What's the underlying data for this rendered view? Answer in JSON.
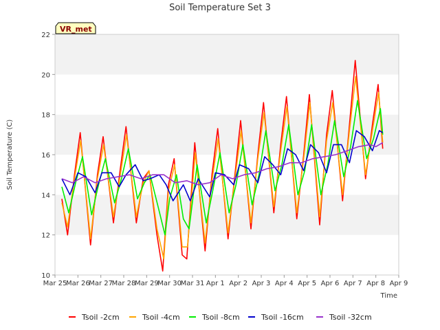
{
  "chart_data": {
    "type": "line",
    "title": "Soil Temperature Set 3",
    "xlabel": "Time",
    "ylabel": "Soil Temperature (C)",
    "site_label": "VR_met",
    "xlim": [
      0,
      15
    ],
    "ylim": [
      10,
      22
    ],
    "yticks": [
      10,
      12,
      14,
      16,
      18,
      20,
      22
    ],
    "xtick_labels": [
      "Mar 25",
      "Mar 26",
      "Mar 27",
      "Mar 28",
      "Mar 29",
      "Mar 30",
      "Mar 31",
      "Apr 1",
      "Apr 2",
      "Apr 3",
      "Apr 4",
      "Apr 5",
      "Apr 6",
      "Apr 7",
      "Apr 8",
      "Apr 9"
    ],
    "x_unit": "days since Mar 25",
    "grid": "horizontal bands",
    "legend_position": "bottom",
    "series": [
      {
        "name": "Tsoil -2cm",
        "color": "#ff0000",
        "x": [
          0.3,
          0.55,
          0.85,
          1.1,
          1.55,
          1.85,
          2.1,
          2.55,
          2.85,
          3.1,
          3.55,
          3.85,
          4.1,
          4.45,
          4.7,
          4.95,
          5.2,
          5.55,
          5.75,
          6.1,
          6.55,
          6.85,
          7.1,
          7.55,
          7.85,
          8.1,
          8.55,
          8.85,
          9.1,
          9.55,
          9.85,
          10.1,
          10.55,
          10.85,
          11.1,
          11.55,
          11.85,
          12.1,
          12.55,
          12.85,
          13.1,
          13.55,
          13.85,
          14.1,
          14.3
        ],
        "y": [
          13.8,
          12.0,
          15.0,
          17.1,
          11.5,
          15.0,
          16.9,
          12.6,
          15.3,
          17.4,
          12.6,
          14.8,
          15.2,
          12.0,
          10.2,
          14.5,
          15.8,
          11.0,
          10.8,
          16.6,
          11.2,
          15.0,
          17.3,
          11.8,
          15.0,
          17.7,
          12.3,
          16.0,
          18.6,
          13.1,
          16.5,
          18.9,
          12.8,
          16.0,
          19.0,
          12.5,
          17.0,
          19.2,
          13.7,
          17.5,
          20.7,
          14.8,
          17.5,
          19.5,
          16.3
        ]
      },
      {
        "name": "Tsoil -4cm",
        "color": "#ffa500",
        "x": [
          0.3,
          0.55,
          0.85,
          1.12,
          1.55,
          1.85,
          2.12,
          2.55,
          2.85,
          3.12,
          3.55,
          3.85,
          4.1,
          4.45,
          4.75,
          4.95,
          5.22,
          5.55,
          5.78,
          6.12,
          6.55,
          6.85,
          7.12,
          7.55,
          7.85,
          8.12,
          8.55,
          8.85,
          9.12,
          9.55,
          9.85,
          10.12,
          10.55,
          10.85,
          11.12,
          11.55,
          11.85,
          12.12,
          12.55,
          12.85,
          13.12,
          13.55,
          13.85,
          14.12,
          14.3
        ],
        "y": [
          13.6,
          12.4,
          14.8,
          16.7,
          11.8,
          14.8,
          16.5,
          12.9,
          15.0,
          17.0,
          12.9,
          14.6,
          15.2,
          12.3,
          10.8,
          14.2,
          15.5,
          11.4,
          11.4,
          16.1,
          11.6,
          14.7,
          16.8,
          12.1,
          14.8,
          17.2,
          12.6,
          15.8,
          18.1,
          13.4,
          16.2,
          18.4,
          13.1,
          15.8,
          18.6,
          12.9,
          16.7,
          18.6,
          14.0,
          17.2,
          19.9,
          15.0,
          17.2,
          19.1,
          16.6
        ]
      },
      {
        "name": "Tsoil -8cm",
        "color": "#00ee00",
        "x": [
          0.3,
          0.6,
          0.9,
          1.2,
          1.6,
          1.9,
          2.2,
          2.6,
          2.9,
          3.2,
          3.6,
          3.9,
          4.15,
          4.5,
          4.8,
          5.0,
          5.3,
          5.6,
          5.85,
          6.2,
          6.6,
          6.9,
          7.2,
          7.6,
          7.9,
          8.2,
          8.6,
          8.9,
          9.2,
          9.6,
          9.9,
          10.2,
          10.6,
          10.9,
          11.2,
          11.6,
          11.9,
          12.2,
          12.6,
          12.9,
          13.2,
          13.6,
          13.9,
          14.2,
          14.3
        ],
        "y": [
          14.4,
          13.1,
          14.6,
          15.9,
          13.0,
          14.5,
          15.8,
          13.6,
          14.8,
          16.3,
          13.8,
          14.6,
          15.0,
          13.4,
          12.0,
          13.8,
          15.0,
          12.8,
          12.3,
          15.5,
          12.6,
          14.3,
          16.1,
          13.1,
          14.5,
          16.5,
          13.5,
          15.0,
          17.2,
          14.2,
          15.5,
          17.5,
          14.0,
          15.2,
          17.5,
          14.0,
          15.5,
          17.7,
          14.9,
          16.4,
          18.7,
          15.8,
          16.8,
          18.3,
          17.0
        ]
      },
      {
        "name": "Tsoil -16cm",
        "color": "#0000cd",
        "x": [
          0.3,
          0.65,
          1.0,
          1.35,
          1.75,
          2.05,
          2.45,
          2.8,
          3.1,
          3.5,
          3.85,
          4.15,
          4.55,
          4.85,
          5.15,
          5.6,
          5.9,
          6.25,
          6.75,
          7.0,
          7.4,
          7.8,
          8.05,
          8.45,
          8.85,
          9.15,
          9.5,
          9.85,
          10.15,
          10.5,
          10.85,
          11.15,
          11.5,
          11.85,
          12.15,
          12.5,
          12.85,
          13.15,
          13.5,
          13.85,
          14.15,
          14.3
        ],
        "y": [
          14.8,
          14.0,
          15.1,
          14.9,
          14.1,
          15.1,
          15.1,
          14.4,
          15.0,
          15.5,
          14.7,
          14.8,
          15.0,
          14.5,
          13.7,
          14.5,
          13.7,
          14.8,
          13.9,
          15.1,
          15.0,
          14.5,
          15.5,
          15.3,
          14.6,
          15.9,
          15.5,
          15.0,
          16.3,
          16.0,
          15.2,
          16.5,
          16.1,
          15.1,
          16.5,
          16.5,
          15.6,
          17.2,
          16.9,
          16.2,
          17.2,
          17.1
        ]
      },
      {
        "name": "Tsoil -32cm",
        "color": "#9932cc",
        "x": [
          0.3,
          0.75,
          1.25,
          1.75,
          2.25,
          2.75,
          3.25,
          3.75,
          4.25,
          4.75,
          5.25,
          5.75,
          6.25,
          6.75,
          7.25,
          7.75,
          8.25,
          8.75,
          9.25,
          9.75,
          10.25,
          10.75,
          11.25,
          11.75,
          12.25,
          12.75,
          13.25,
          13.75,
          14.0,
          14.3
        ],
        "y": [
          14.8,
          14.6,
          14.9,
          14.6,
          14.8,
          14.9,
          15.0,
          14.8,
          15.0,
          15.0,
          14.6,
          14.7,
          14.5,
          14.6,
          15.0,
          14.8,
          15.0,
          15.1,
          15.3,
          15.4,
          15.6,
          15.6,
          15.8,
          15.9,
          16.0,
          16.2,
          16.4,
          16.5,
          16.4,
          16.6
        ]
      }
    ]
  }
}
